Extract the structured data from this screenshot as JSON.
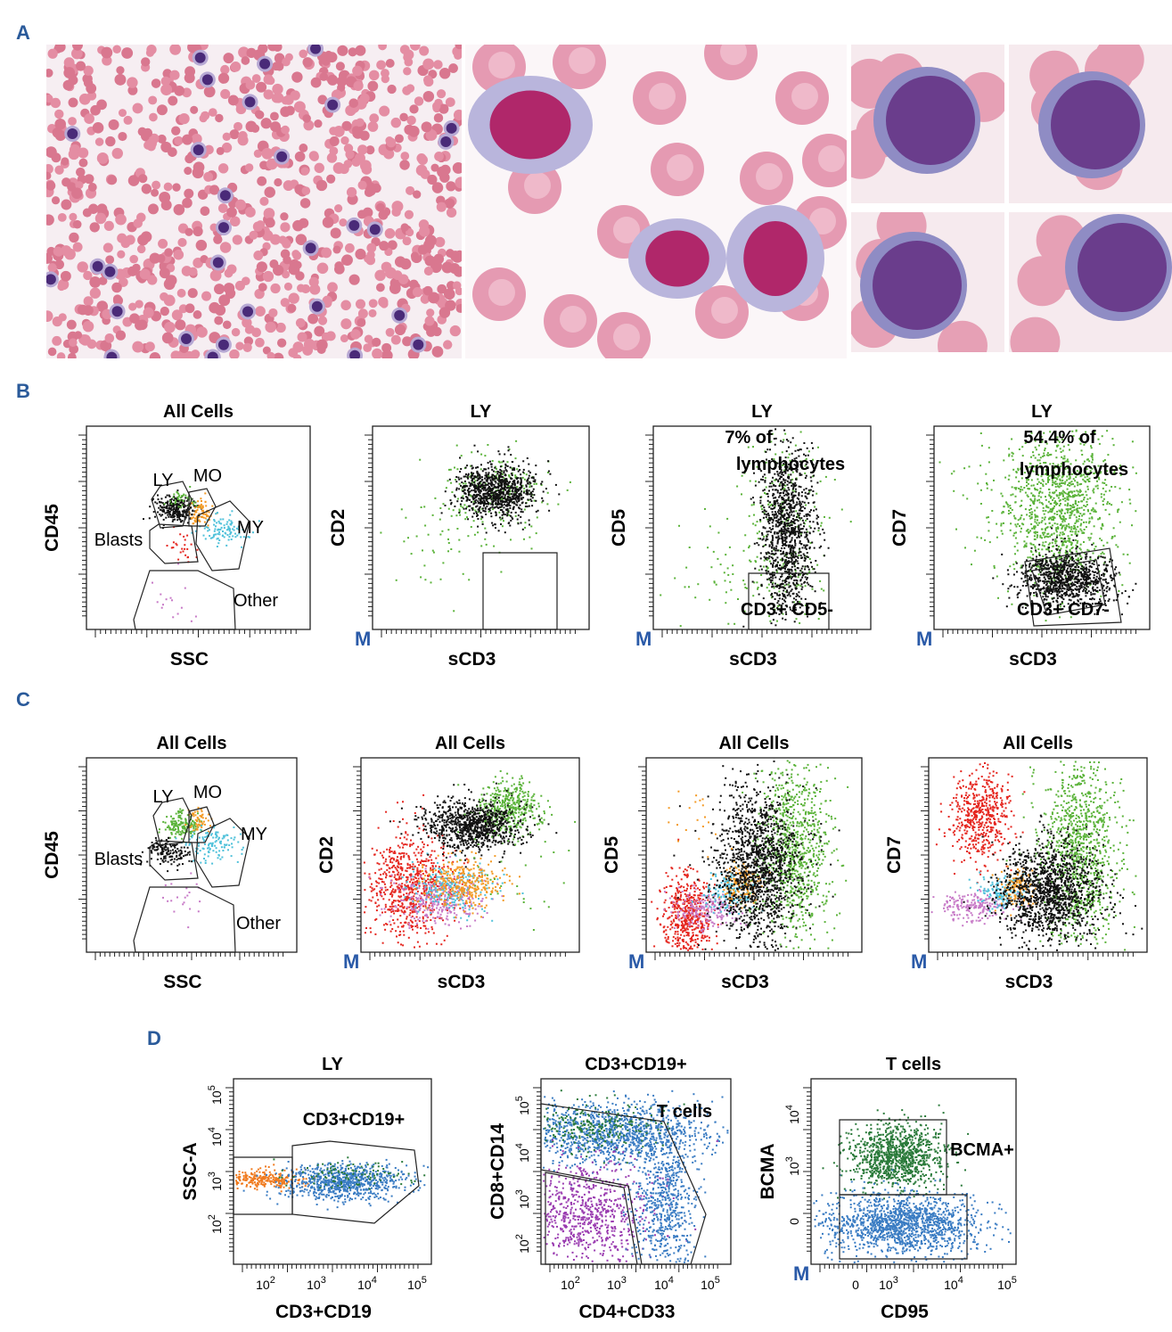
{
  "panels": {
    "A": {
      "label": "A"
    },
    "B": {
      "label": "B",
      "plots": [
        {
          "title": "All Cells",
          "x_label": "SSC",
          "y_label": "CD45",
          "gate_labels": [
            "LY",
            "MO",
            "Blasts",
            "MY",
            "Other"
          ]
        },
        {
          "title": "LY",
          "x_label": "sCD3",
          "y_label": "CD2",
          "corner_mark": "M"
        },
        {
          "title": "LY",
          "x_label": "sCD3",
          "y_label": "CD5",
          "corner_mark": "M",
          "gate_labels": [
            "7% of",
            "lymphocytes",
            "CD3+ CD5-"
          ]
        },
        {
          "title": "LY",
          "x_label": "sCD3",
          "y_label": "CD7",
          "corner_mark": "M",
          "gate_labels": [
            "54.4% of",
            "lymphocytes",
            "CD3+ CD7-"
          ]
        }
      ]
    },
    "C": {
      "label": "C",
      "plots": [
        {
          "title": "All Cells",
          "x_label": "SSC",
          "y_label": "CD45",
          "gate_labels": [
            "LY",
            "MO",
            "Blasts",
            "MY",
            "Other"
          ]
        },
        {
          "title": "All Cells",
          "x_label": "sCD3",
          "y_label": "CD2",
          "corner_mark": "M"
        },
        {
          "title": "All Cells",
          "x_label": "sCD3",
          "y_label": "CD5",
          "corner_mark": "M"
        },
        {
          "title": "All Cells",
          "x_label": "sCD3",
          "y_label": "CD7",
          "corner_mark": "M"
        }
      ]
    },
    "D": {
      "label": "D",
      "plots": [
        {
          "title": "LY",
          "x_label": "CD3+CD19",
          "y_label": "SSC-A",
          "gate_labels": [
            "CD3+CD19+"
          ],
          "x_ticks": [
            {
              "base": "10",
              "exp": "2"
            },
            {
              "base": "10",
              "exp": "3"
            },
            {
              "base": "10",
              "exp": "4"
            },
            {
              "base": "10",
              "exp": "5"
            }
          ],
          "y_ticks": [
            {
              "base": "10",
              "exp": "2"
            },
            {
              "base": "10",
              "exp": "3"
            },
            {
              "base": "10",
              "exp": "4"
            },
            {
              "base": "10",
              "exp": "5"
            }
          ]
        },
        {
          "title": "CD3+CD19+",
          "x_label": "CD4+CD33",
          "y_label": "CD8+CD14",
          "gate_labels": [
            "T cells"
          ],
          "x_ticks": [
            {
              "base": "10",
              "exp": "2"
            },
            {
              "base": "10",
              "exp": "3"
            },
            {
              "base": "10",
              "exp": "4"
            },
            {
              "base": "10",
              "exp": "5"
            }
          ],
          "y_ticks": [
            {
              "base": "10",
              "exp": "2"
            },
            {
              "base": "10",
              "exp": "3"
            },
            {
              "base": "10",
              "exp": "4"
            },
            {
              "base": "10",
              "exp": "5"
            }
          ]
        },
        {
          "title": "T cells",
          "x_label": "CD95",
          "y_label": "BCMA",
          "corner_mark": "M",
          "gate_labels": [
            "BCMA+"
          ],
          "x_ticks": [
            "0",
            {
              "base": "10",
              "exp": "3"
            },
            {
              "base": "10",
              "exp": "4"
            },
            {
              "base": "10",
              "exp": "5"
            }
          ],
          "y_ticks": [
            "0",
            {
              "base": "10",
              "exp": "3"
            },
            {
              "base": "10",
              "exp": "4"
            }
          ]
        }
      ]
    }
  }
}
